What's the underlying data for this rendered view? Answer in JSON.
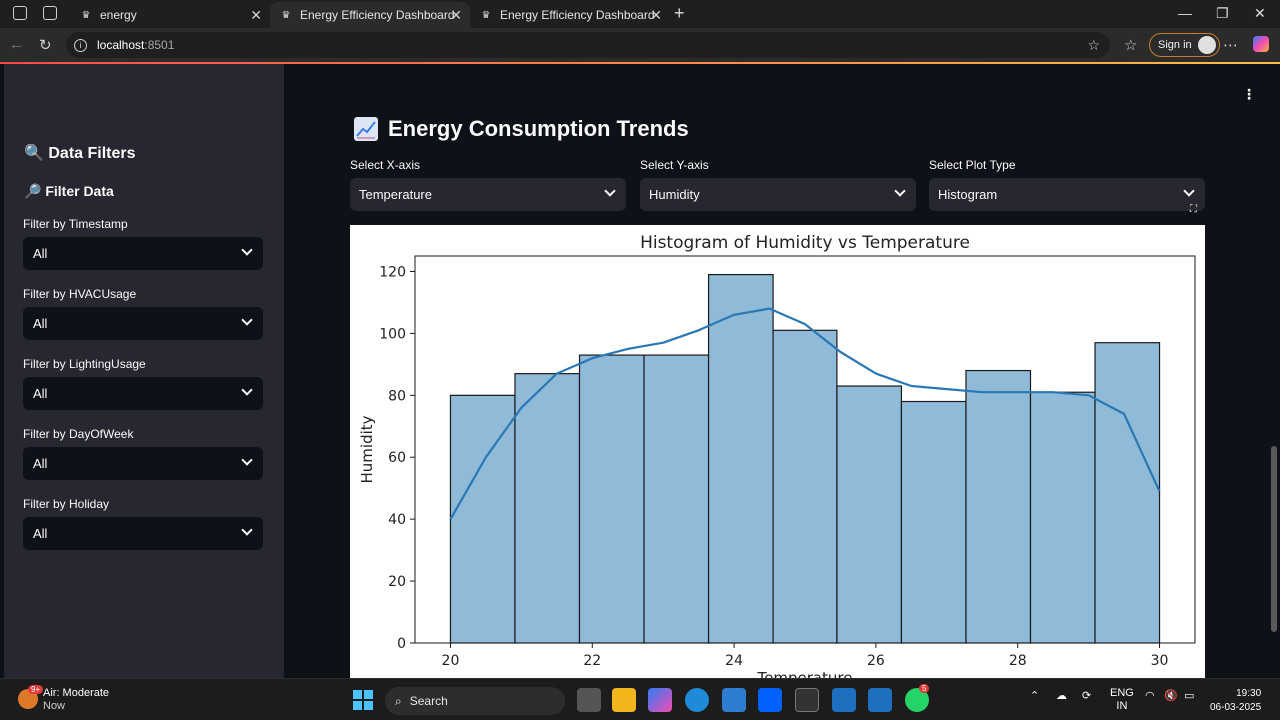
{
  "browser": {
    "tabs": [
      {
        "title": "energy",
        "active": false
      },
      {
        "title": "Energy Efficiency Dashboard",
        "active": true
      },
      {
        "title": "Energy Efficiency Dashboard",
        "active": false
      }
    ],
    "url_host": "localhost",
    "url_port": ":8501",
    "signin_label": "Sign in"
  },
  "sidebar": {
    "heading": "🔍 Data Filters",
    "subheading": "🔎 Filter Data",
    "filters": [
      {
        "label": "Filter by Timestamp",
        "value": "All"
      },
      {
        "label": "Filter by HVACUsage",
        "value": "All"
      },
      {
        "label": "Filter by LightingUsage",
        "value": "All"
      },
      {
        "label": "Filter by DayOfWeek",
        "value": "All"
      },
      {
        "label": "Filter by Holiday",
        "value": "All"
      }
    ]
  },
  "main": {
    "title": "Energy Consumption Trends",
    "selects": [
      {
        "label": "Select X-axis",
        "value": "Temperature"
      },
      {
        "label": "Select Y-axis",
        "value": "Humidity"
      },
      {
        "label": "Select Plot Type",
        "value": "Histogram"
      }
    ]
  },
  "chart_data": {
    "type": "bar",
    "title": "Histogram of Humidity vs Temperature",
    "xlabel": "Temperature",
    "ylabel": "Humidity",
    "xlim": [
      19.5,
      30.5
    ],
    "ylim": [
      0,
      125
    ],
    "xticks": [
      20,
      22,
      24,
      26,
      28,
      30
    ],
    "yticks": [
      0,
      20,
      40,
      60,
      80,
      100,
      120
    ],
    "bin_edges": [
      20.0,
      20.91,
      21.82,
      22.73,
      23.64,
      24.55,
      25.45,
      26.36,
      27.27,
      28.18,
      29.09,
      30.0
    ],
    "values": [
      80,
      87,
      93,
      93,
      119,
      101,
      83,
      78,
      88,
      81,
      97
    ],
    "bar_color": "#8fbad8",
    "kde": {
      "x": [
        20.0,
        20.5,
        21.0,
        21.5,
        22.0,
        22.5,
        23.0,
        23.5,
        24.0,
        24.5,
        25.0,
        25.5,
        26.0,
        26.5,
        27.0,
        27.5,
        28.0,
        28.5,
        29.0,
        29.5,
        30.0
      ],
      "y": [
        40,
        60,
        76,
        87,
        92,
        95,
        97,
        101,
        106,
        108,
        103,
        94,
        87,
        83,
        82,
        81,
        81,
        81,
        80,
        74,
        49
      ],
      "color": "#2a78b3"
    }
  },
  "taskbar": {
    "weather_title": "Air: Moderate",
    "weather_sub": "Now",
    "weather_badge": "9+",
    "search_label": "Search",
    "whatsapp_badge": "5",
    "lang_top": "ENG",
    "lang_bottom": "IN",
    "time": "19:30",
    "date": "06-03-2025"
  }
}
